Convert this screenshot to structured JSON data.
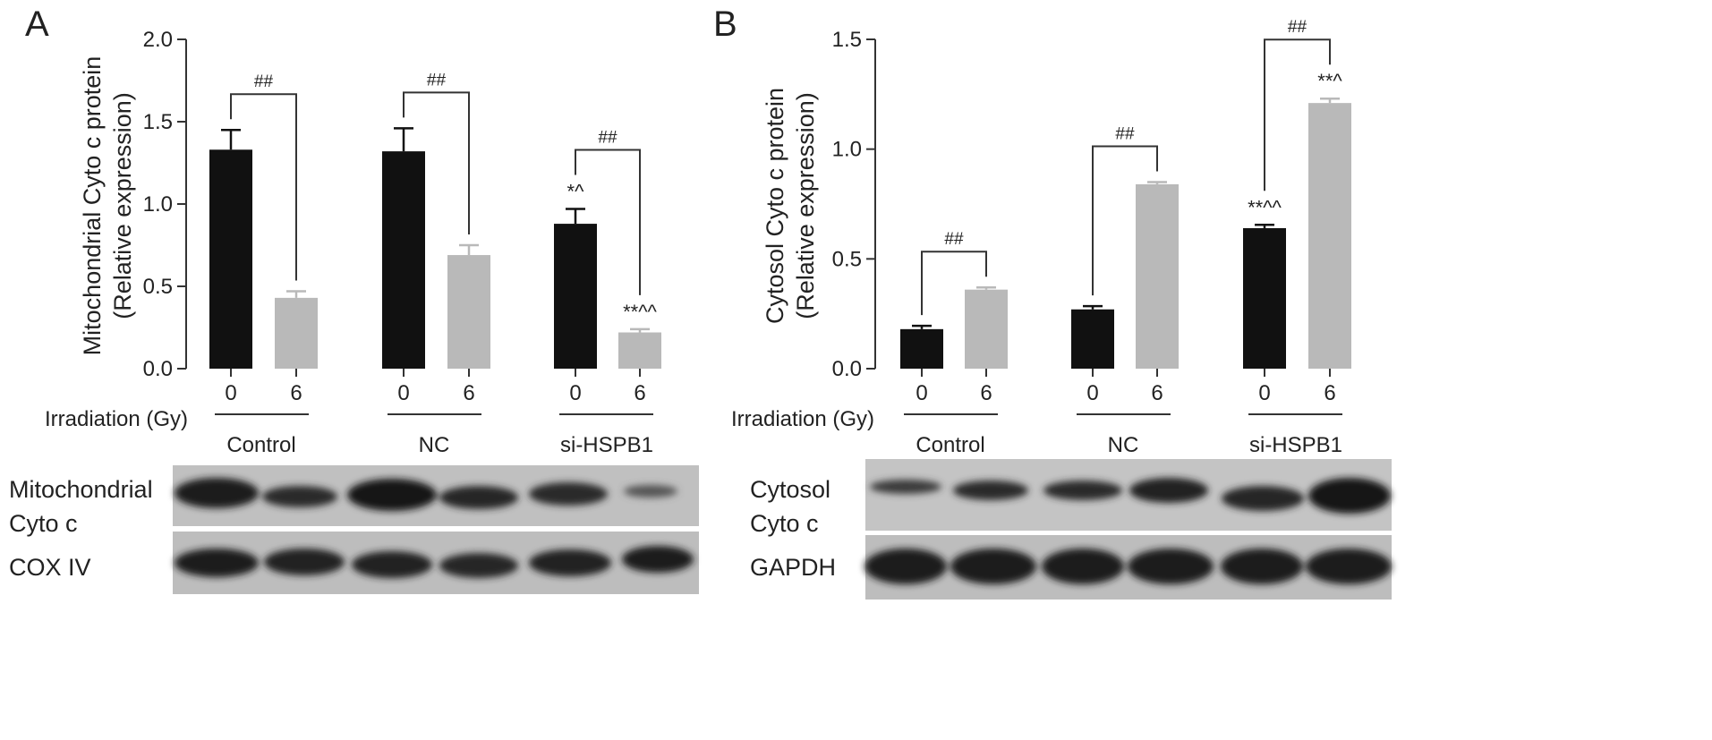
{
  "figure": {
    "irradiation_label": "Irradiation (Gy)",
    "doses": [
      "0",
      "6"
    ],
    "groups": [
      "Control",
      "NC",
      "si-HSPB1"
    ]
  },
  "chart_data": [
    {
      "type": "bar",
      "panel": "A",
      "ylabel_line1": "Mitochondrial Cyto c protein",
      "ylabel_line2": "(Relative expression)",
      "ylim": [
        0,
        2.0
      ],
      "yticks": [
        "0.0",
        "0.5",
        "1.0",
        "1.5",
        "2.0"
      ],
      "bars": [
        {
          "group": "Control",
          "dose": "0",
          "value": 1.33,
          "err": 0.12,
          "label": ""
        },
        {
          "group": "Control",
          "dose": "6",
          "value": 0.43,
          "err": 0.04,
          "label": ""
        },
        {
          "group": "NC",
          "dose": "0",
          "value": 1.32,
          "err": 0.14,
          "label": ""
        },
        {
          "group": "NC",
          "dose": "6",
          "value": 0.69,
          "err": 0.06,
          "label": ""
        },
        {
          "group": "si-HSPB1",
          "dose": "0",
          "value": 0.88,
          "err": 0.09,
          "label": "*^"
        },
        {
          "group": "si-HSPB1",
          "dose": "6",
          "value": 0.22,
          "err": 0.02,
          "label": "**^^"
        }
      ],
      "comparisons": [
        {
          "from": 0,
          "to": 1,
          "label": "##"
        },
        {
          "from": 2,
          "to": 3,
          "label": "##"
        },
        {
          "from": 4,
          "to": 5,
          "label": "##"
        }
      ]
    },
    {
      "type": "bar",
      "panel": "B",
      "ylabel_line1": "Cytosol Cyto c protein",
      "ylabel_line2": "(Relative expression)",
      "ylim": [
        0,
        1.5
      ],
      "yticks": [
        "0.0",
        "0.5",
        "1.0",
        "1.5"
      ],
      "bars": [
        {
          "group": "Control",
          "dose": "0",
          "value": 0.18,
          "err": 0.015,
          "label": ""
        },
        {
          "group": "Control",
          "dose": "6",
          "value": 0.36,
          "err": 0.01,
          "label": ""
        },
        {
          "group": "NC",
          "dose": "0",
          "value": 0.27,
          "err": 0.015,
          "label": ""
        },
        {
          "group": "NC",
          "dose": "6",
          "value": 0.84,
          "err": 0.01,
          "label": ""
        },
        {
          "group": "si-HSPB1",
          "dose": "0",
          "value": 0.64,
          "err": 0.015,
          "label": "**^^"
        },
        {
          "group": "si-HSPB1",
          "dose": "6",
          "value": 1.21,
          "err": 0.02,
          "label": "**^"
        }
      ],
      "comparisons": [
        {
          "from": 0,
          "to": 1,
          "label": "##"
        },
        {
          "from": 2,
          "to": 3,
          "label": "##"
        },
        {
          "from": 4,
          "to": 5,
          "label": "##"
        }
      ]
    }
  ],
  "blots": {
    "A": {
      "row1_line1": "Mitochondrial",
      "row1_line2": "Cyto c",
      "row2": "COX IV"
    },
    "B": {
      "row1_line1": "Cytosol",
      "row1_line2": "Cyto c",
      "row2": "GAPDH"
    }
  },
  "colors": {
    "dose_0": "#111111",
    "dose_6": "#b9b9b9",
    "axis": "#333333",
    "blot_bg": "#bdbdbd",
    "band": "#1e1e1e"
  }
}
